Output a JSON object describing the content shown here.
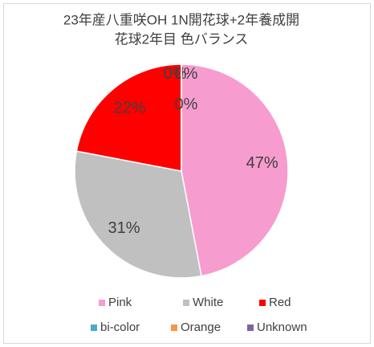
{
  "chart_data": {
    "type": "pie",
    "title": [
      "23年産八重咲OH 1N開花球+2年養成開",
      "花球2年目 色バランス"
    ],
    "categories": [
      "Pink",
      "White",
      "Red",
      "bi-color",
      "Orange",
      "Unknown"
    ],
    "values": [
      47,
      31,
      22,
      0,
      0,
      0
    ],
    "value_labels": [
      "47%",
      "31%",
      "22%",
      "0%",
      "0%",
      "0%"
    ],
    "colors": [
      "#f79ccf",
      "#c0c0c0",
      "#ff0000",
      "#4bacc6",
      "#f79646",
      "#8064a2"
    ],
    "legend": "bottom"
  }
}
